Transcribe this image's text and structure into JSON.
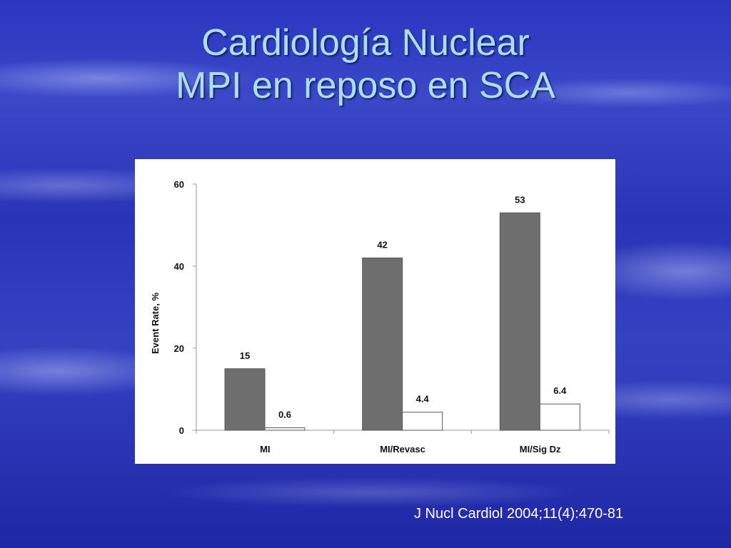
{
  "slide": {
    "title_line1": "Cardiología Nuclear",
    "title_line2": "MPI en reposo en SCA",
    "citation": "J Nucl Cardiol 2004;11(4):470-81"
  },
  "colors": {
    "title": "#a9e0f4",
    "bar_dark": "#6e6e6e",
    "bar_light": "#ffffff",
    "bar_outline": "#5a5a5a",
    "axis": "#999999"
  },
  "chart_data": {
    "type": "bar",
    "title": "",
    "xlabel": "",
    "ylabel": "Event Rate, %",
    "ylim": [
      0,
      60
    ],
    "yticks": [
      "0",
      "20",
      "40",
      "60"
    ],
    "categories": [
      "MI",
      "MI/Revasc",
      "MI/Sig Dz"
    ],
    "series": [
      {
        "values": [
          15,
          42,
          53
        ],
        "labels": [
          "15",
          "42",
          "53"
        ],
        "fill": "#6e6e6e"
      },
      {
        "values": [
          0.6,
          4.4,
          6.4
        ],
        "labels": [
          "0.6",
          "4.4",
          "6.4"
        ],
        "fill": "#ffffff"
      }
    ],
    "grid": false,
    "legend": "none"
  }
}
